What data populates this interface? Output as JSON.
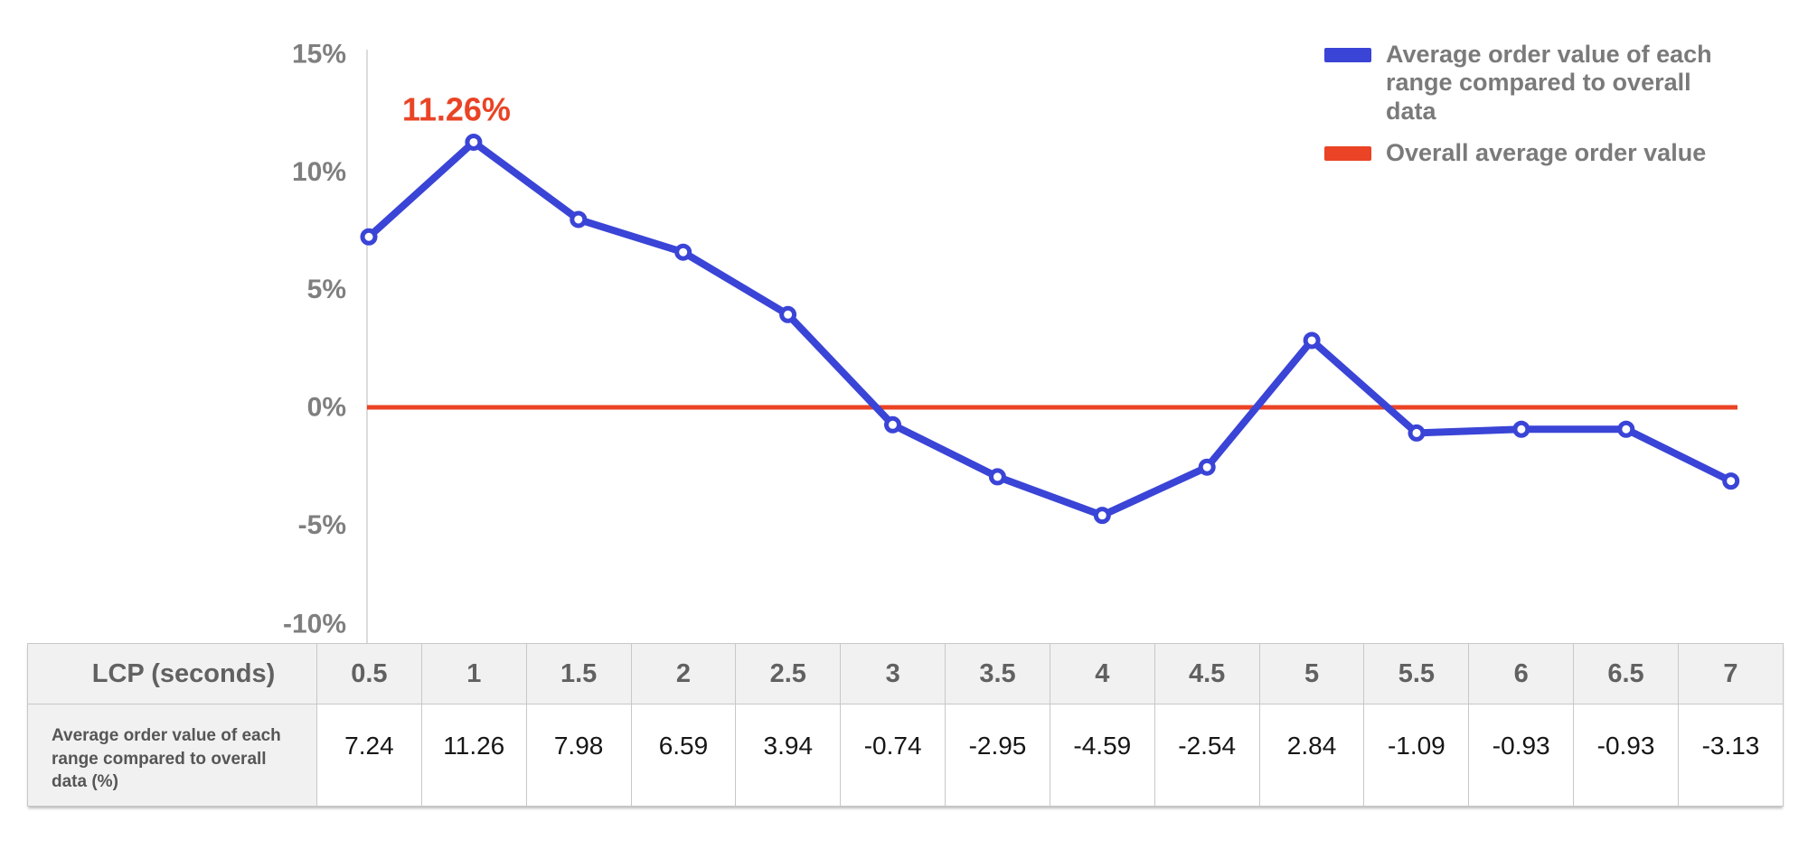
{
  "colors": {
    "series_blue": "#3a44d6",
    "series_red": "#ea4325",
    "axis_line": "#dcdcdc",
    "axis_text": "#7f7f7f",
    "legend_text": "#7a7a7a",
    "table_border": "#c8c8c8",
    "table_header_bg": "#f1f1f1",
    "table_header_text": "#616161",
    "table_value_text": "#161616"
  },
  "chart_data": {
    "type": "line",
    "title": "",
    "xlabel": "LCP (seconds)",
    "ylabel": "",
    "x": [
      0.5,
      1,
      1.5,
      2,
      2.5,
      3,
      3.5,
      4,
      4.5,
      5,
      5.5,
      6,
      6.5,
      7
    ],
    "series": [
      {
        "name": "Average order value of each range compared to overall data",
        "type": "line",
        "color": "#3a44d6",
        "marker": "open-circle",
        "values": [
          7.24,
          11.26,
          7.98,
          6.59,
          3.94,
          -0.74,
          -2.95,
          -4.59,
          -2.54,
          2.84,
          -1.09,
          -0.93,
          -0.93,
          -3.13
        ]
      },
      {
        "name": "Overall average order value",
        "type": "hline",
        "color": "#ea4325",
        "value": 0
      }
    ],
    "yticks": [
      {
        "value": 15,
        "label": "15%"
      },
      {
        "value": 10,
        "label": "10%"
      },
      {
        "value": 5,
        "label": "5%"
      },
      {
        "value": 0,
        "label": "0%"
      },
      {
        "value": -5,
        "label": "-5%"
      },
      {
        "value": -10,
        "label": "-10%"
      }
    ],
    "ylim": [
      -10,
      15
    ],
    "grid": false,
    "legend_position": "top-right",
    "annotation": {
      "text": "11.26%",
      "x_index": 1,
      "color": "#ea4325"
    }
  },
  "legend": {
    "items": [
      {
        "label": "Average order value of each range compared to overall data",
        "color": "#3a44d6"
      },
      {
        "label": "Overall average order value",
        "color": "#ea4325"
      }
    ]
  },
  "table": {
    "header_label": "LCP (seconds)",
    "columns": [
      "0.5",
      "1",
      "1.5",
      "2",
      "2.5",
      "3",
      "3.5",
      "4",
      "4.5",
      "5",
      "5.5",
      "6",
      "6.5",
      "7"
    ],
    "rows": [
      {
        "label": "Average order value of each range compared to overall data (%)",
        "values": [
          "7.24",
          "11.26",
          "7.98",
          "6.59",
          "3.94",
          "-0.74",
          "-2.95",
          "-4.59",
          "-2.54",
          "2.84",
          "-1.09",
          "-0.93",
          "-0.93",
          "-3.13"
        ]
      }
    ]
  }
}
